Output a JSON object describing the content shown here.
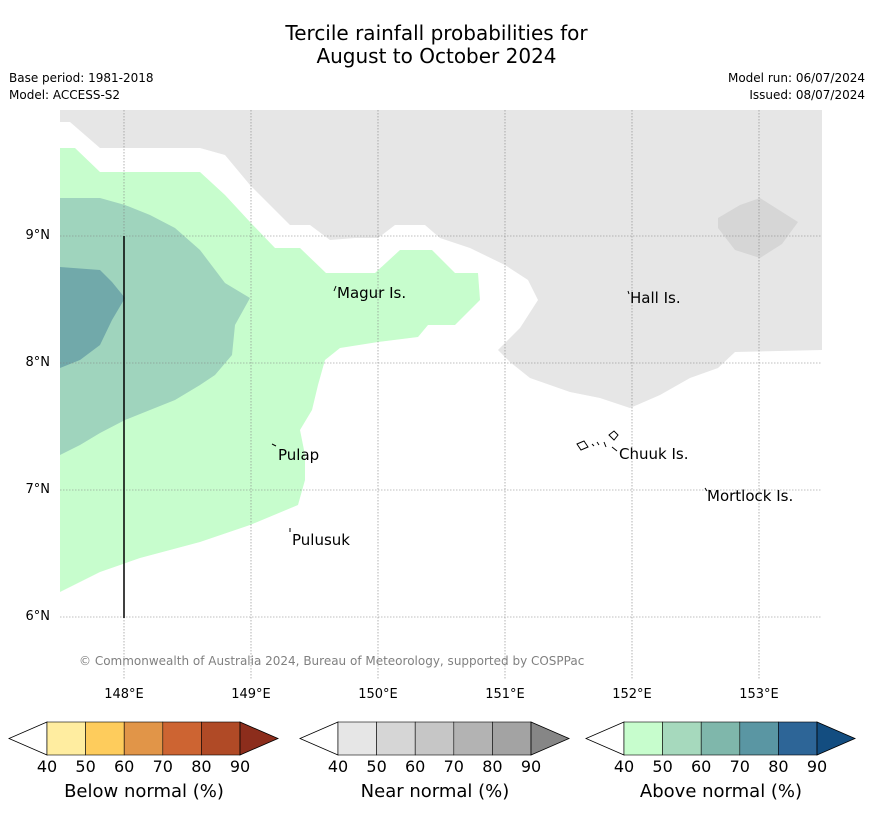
{
  "title": {
    "line1": "Tercile rainfall probabilities for",
    "line2": "August to October 2024"
  },
  "meta": {
    "base_period": "Base period: 1981-2018",
    "model": "Model: ACCESS-S2",
    "model_run": "Model run: 06/07/2024",
    "issued": "Issued: 08/07/2024"
  },
  "axes": {
    "latitudes": [
      "9°N",
      "8°N",
      "7°N",
      "6°N"
    ],
    "longitudes": [
      "148°E",
      "149°E",
      "150°E",
      "151°E",
      "152°E",
      "153°E"
    ]
  },
  "places": {
    "magur": "Magur Is.",
    "hall": "Hall Is.",
    "pulap": "Pulap",
    "chuuk": "Chuuk Is.",
    "mortlock": "Mortlock Is.",
    "pulusuk": "Pulusuk"
  },
  "copyright": "© Commonwealth of Australia 2024, Bureau of Meteorology, supported by COSPPac",
  "colorbars": {
    "below": {
      "label": "Below normal (%)",
      "ticks": [
        "40",
        "50",
        "60",
        "70",
        "80",
        "90"
      ],
      "colors": [
        "#ffeda0",
        "#fecc5c",
        "#e19548",
        "#cd6432",
        "#b04a26",
        "#8c2d1c"
      ]
    },
    "near": {
      "label": "Near normal (%)",
      "ticks": [
        "40",
        "50",
        "60",
        "70",
        "80",
        "90"
      ],
      "colors": [
        "#e6e6e6",
        "#d6d6d6",
        "#c6c6c6",
        "#b3b3b3",
        "#a3a3a3",
        "#868686"
      ]
    },
    "above": {
      "label": "Above normal (%)",
      "ticks": [
        "40",
        "50",
        "60",
        "70",
        "80",
        "90"
      ],
      "colors": [
        "#c7fdcd",
        "#a6d9bd",
        "#7fb7ab",
        "#5a96a3",
        "#2d6597",
        "#134d80"
      ]
    }
  },
  "map_colors": {
    "near_40": "#e6e6e6",
    "near_50": "#d6d6d6",
    "above_40": "#c7fdcd",
    "above_50": "#9fd4bd",
    "above_60": "#71a9aa"
  }
}
